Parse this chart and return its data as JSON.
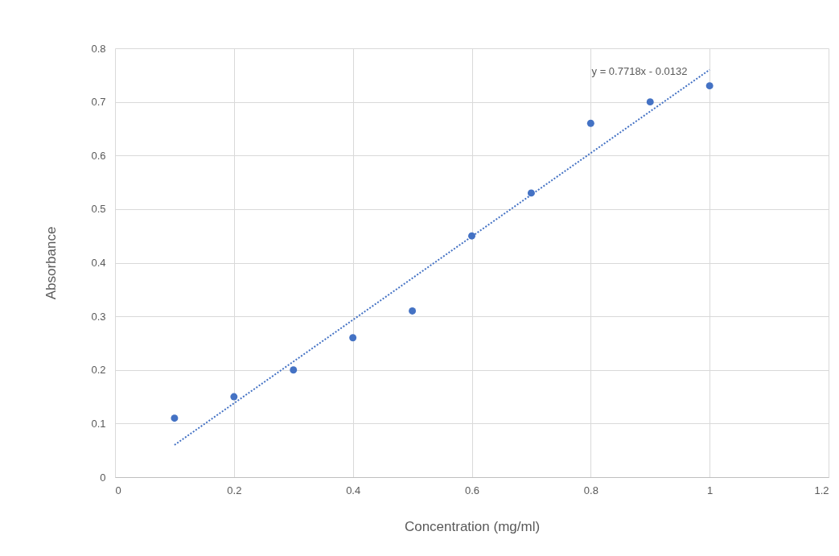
{
  "chart_data": {
    "type": "scatter",
    "xlabel": "Concentration (mg/ml)",
    "ylabel": "Absorbance",
    "xlim": [
      0,
      1.2
    ],
    "xticks": [
      0,
      0.2,
      0.4,
      0.6,
      0.8,
      1,
      1.2
    ],
    "ylim": [
      0,
      0.8
    ],
    "yticks": [
      0,
      0.1,
      0.2,
      0.3,
      0.4,
      0.5,
      0.6,
      0.7,
      0.8
    ],
    "grid": true,
    "marker": "circle",
    "series": [
      {
        "color": "#4472c4",
        "x": [
          0.1,
          0.2,
          0.3,
          0.4,
          0.5,
          0.6,
          0.7,
          0.8,
          0.9,
          1
        ],
        "values": [
          0.11,
          0.15,
          0.2,
          0.26,
          0.31,
          0.45,
          0.53,
          0.66,
          0.7,
          0.73
        ]
      },
      {
        "type": "line",
        "color": "#4472c4",
        "line_style": "dotted",
        "marker": "none",
        "x": [
          0.1,
          1
        ],
        "values": [
          0.06,
          0.76
        ]
      }
    ],
    "annotations": [
      "y = 0.7718x - 0.0132"
    ]
  }
}
